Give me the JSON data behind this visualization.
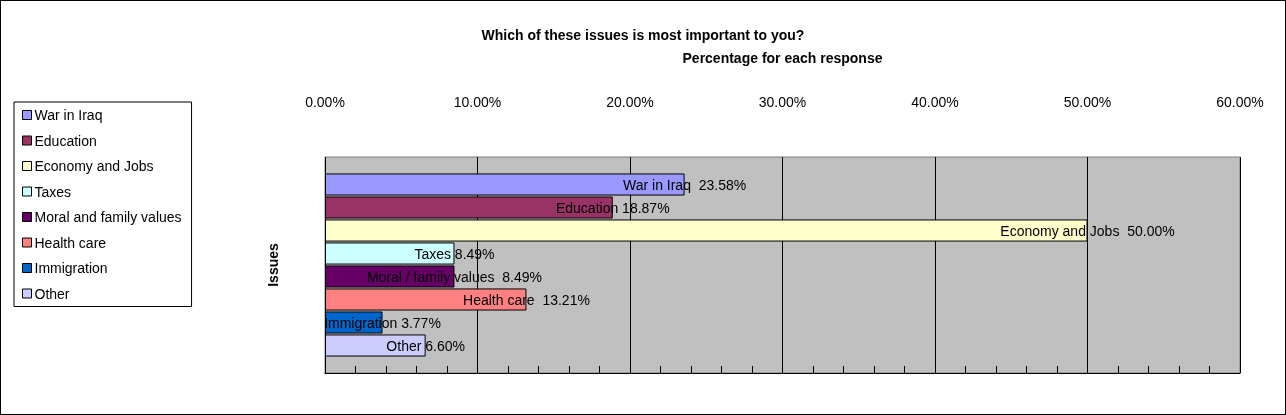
{
  "chart_data": {
    "type": "bar",
    "orientation": "horizontal",
    "title": "Which of these issues is most important to you?",
    "xlabel": "Percentage for each response",
    "ylabel": "Issues",
    "categories": [
      null,
      null,
      null,
      null,
      null,
      null,
      null,
      null
    ],
    "series": [
      {
        "name": "War in Iraq",
        "color": "#9999ff",
        "values": [
          23.58,
          null,
          null,
          null,
          null,
          null,
          null,
          null
        ],
        "value_labels": [
          "War in Iraq  23.58%",
          null,
          null,
          null,
          null,
          null,
          null,
          null
        ]
      },
      {
        "name": "Education",
        "color": "#993366",
        "values": [
          null,
          18.87,
          null,
          null,
          null,
          null,
          null,
          null
        ],
        "value_labels": [
          null,
          "Education 18.87%",
          null,
          null,
          null,
          null,
          null,
          null
        ]
      },
      {
        "name": "Economy and Jobs",
        "color": "#ffffcc",
        "values": [
          null,
          null,
          50.0,
          null,
          null,
          null,
          null,
          null
        ],
        "value_labels": [
          null,
          null,
          "Economy and Jobs  50.00%",
          null,
          null,
          null,
          null,
          null
        ]
      },
      {
        "name": "Taxes",
        "color": "#ccffff",
        "values": [
          null,
          null,
          null,
          8.49,
          null,
          null,
          null,
          null
        ],
        "value_labels": [
          null,
          null,
          null,
          "Taxes 8.49%",
          null,
          null,
          null,
          null
        ]
      },
      {
        "name": "Moral and family values",
        "color": "#660066",
        "values": [
          null,
          null,
          null,
          null,
          8.49,
          null,
          null,
          null
        ],
        "value_labels": [
          null,
          null,
          null,
          null,
          "Moral / family values  8.49%",
          null,
          null,
          null
        ]
      },
      {
        "name": "Health care",
        "color": "#ff8080",
        "values": [
          null,
          null,
          null,
          null,
          null,
          13.21,
          null,
          null
        ],
        "value_labels": [
          null,
          null,
          null,
          null,
          null,
          "Health care  13.21%",
          null,
          null
        ]
      },
      {
        "name": "Immigration",
        "color": "#0066cc",
        "values": [
          null,
          null,
          null,
          null,
          null,
          null,
          3.77,
          null
        ],
        "value_labels": [
          null,
          null,
          null,
          null,
          null,
          null,
          "Immigration 3.77%",
          null
        ]
      },
      {
        "name": "Other",
        "color": "#ccccff",
        "values": [
          null,
          null,
          null,
          null,
          null,
          null,
          null,
          6.6
        ],
        "value_labels": [
          null,
          null,
          null,
          null,
          null,
          null,
          null,
          "Other 6.60%"
        ]
      }
    ],
    "xlim": [
      0,
      60
    ],
    "xticks": [
      {
        "value": 0,
        "label": "0.00%"
      },
      {
        "value": 2,
        "label": null
      },
      {
        "value": 4,
        "label": null
      },
      {
        "value": 6,
        "label": null
      },
      {
        "value": 8,
        "label": null
      },
      {
        "value": 10,
        "label": "10.00%"
      },
      {
        "value": 12,
        "label": null
      },
      {
        "value": 14,
        "label": null
      },
      {
        "value": 16,
        "label": null
      },
      {
        "value": 18,
        "label": null
      },
      {
        "value": 20,
        "label": "20.00%"
      },
      {
        "value": 22,
        "label": null
      },
      {
        "value": 24,
        "label": null
      },
      {
        "value": 26,
        "label": null
      },
      {
        "value": 28,
        "label": null
      },
      {
        "value": 30,
        "label": "30.00%"
      },
      {
        "value": 32,
        "label": null
      },
      {
        "value": 34,
        "label": null
      },
      {
        "value": 36,
        "label": null
      },
      {
        "value": 38,
        "label": null
      },
      {
        "value": 40,
        "label": "40.00%"
      },
      {
        "value": 42,
        "label": null
      },
      {
        "value": 44,
        "label": null
      },
      {
        "value": 46,
        "label": null
      },
      {
        "value": 48,
        "label": null
      },
      {
        "value": 50,
        "label": "50.00%"
      },
      {
        "value": 52,
        "label": null
      },
      {
        "value": 54,
        "label": null
      },
      {
        "value": 56,
        "label": null
      },
      {
        "value": 58,
        "label": null
      },
      {
        "value": 60,
        "label": "60.00%"
      }
    ],
    "grid": "x",
    "legend": "left"
  }
}
